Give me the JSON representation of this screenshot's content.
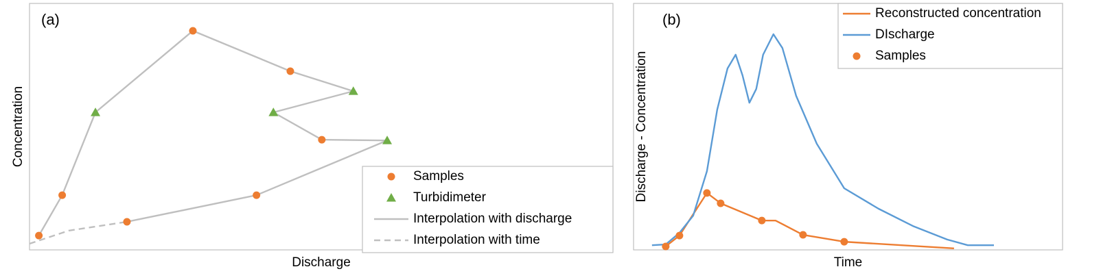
{
  "chart_data": [
    {
      "type": "scatter",
      "title": "(a)",
      "x_label": "Discharge",
      "y_label": "Concentration",
      "xlim": [
        0,
        100
      ],
      "ylim": [
        0,
        100
      ],
      "legend": "lower right",
      "series": [
        {
          "name": "Samples",
          "color": "#ed7d31",
          "marker": "circle",
          "line": "none",
          "x": [
            1.6,
            5.6,
            28.0,
            44.7,
            50.1,
            38.9,
            16.7
          ],
          "y": [
            5.8,
            22.2,
            88.9,
            72.5,
            44.7,
            22.2,
            11.4
          ]
        },
        {
          "name": "Turbidimeter",
          "color": "#70ad47",
          "marker": "triangle",
          "line": "none",
          "x": [
            11.3,
            55.5,
            41.8,
            61.3
          ],
          "y": [
            55.8,
            64.4,
            55.8,
            44.4
          ]
        },
        {
          "name": "Interpolation with discharge",
          "color": "#bfbfbf",
          "marker": "none",
          "line": "solid",
          "x": [
            1.6,
            5.6,
            11.3,
            28.0,
            44.7,
            55.5,
            41.8,
            50.1,
            61.3,
            38.9,
            16.7
          ],
          "y": [
            5.8,
            22.2,
            55.8,
            88.9,
            72.5,
            64.4,
            55.8,
            44.7,
            44.4,
            22.2,
            11.4
          ]
        },
        {
          "name": "Interpolation with time",
          "color": "#bfbfbf",
          "marker": "none",
          "line": "dashed",
          "x": [
            0,
            6.7,
            16.7
          ],
          "y": [
            2.5,
            7.8,
            11.4
          ]
        }
      ]
    },
    {
      "type": "line",
      "title": "(b)",
      "x_label": "Time",
      "y_label": "Discharge - Concentration",
      "xlim": [
        0,
        100
      ],
      "ylim": [
        0,
        100
      ],
      "legend": "upper right",
      "series": [
        {
          "name": "Reconstructed concentration",
          "color": "#ed7d31",
          "marker": "none",
          "line": "solid",
          "x": [
            7.5,
            10.7,
            17.1,
            20.3,
            29.9,
            33.1,
            39.5,
            49.1,
            74.7
          ],
          "y": [
            1.4,
            5.8,
            23.1,
            18.9,
            11.9,
            11.9,
            6.1,
            3.3,
            0.6
          ]
        },
        {
          "name": "DIscharge",
          "color": "#5b9bd5",
          "marker": "none",
          "line": "solid",
          "x": [
            4.3,
            7.5,
            10.7,
            13.9,
            17.1,
            19.5,
            21.9,
            23.8,
            25.4,
            27.0,
            28.6,
            30.2,
            32.6,
            34.7,
            37.9,
            42.7,
            49.1,
            57.1,
            65.1,
            73.1,
            77.9,
            81.1,
            84.0
          ],
          "y": [
            1.9,
            2.2,
            6.9,
            13.9,
            31.9,
            56.9,
            73.6,
            79.2,
            70.8,
            59.7,
            65.3,
            79.2,
            87.5,
            81.9,
            62.5,
            43.1,
            25.0,
            16.7,
            9.7,
            4.2,
            1.9,
            1.9,
            1.9
          ]
        },
        {
          "name": "Samples",
          "color": "#ed7d31",
          "marker": "circle",
          "line": "none",
          "x": [
            7.5,
            10.7,
            17.1,
            20.3,
            29.9,
            39.5,
            49.1
          ],
          "y": [
            1.4,
            5.8,
            23.1,
            18.9,
            11.9,
            6.1,
            3.3
          ]
        }
      ]
    }
  ]
}
